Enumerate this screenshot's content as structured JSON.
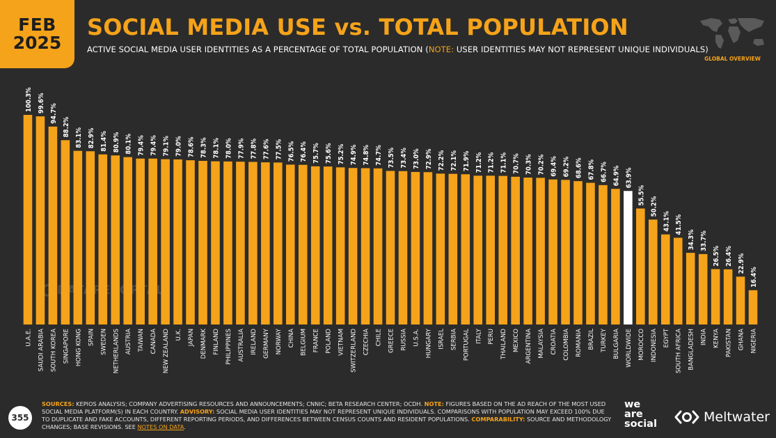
{
  "header": {
    "month": "FEB",
    "year": "2025",
    "title": "SOCIAL MEDIA USE vs. TOTAL POPULATION",
    "subtitle_main": "ACTIVE SOCIAL MEDIA USER IDENTITIES AS A PERCENTAGE OF TOTAL POPULATION (",
    "subtitle_note_label": "NOTE:",
    "subtitle_note_text": " USER IDENTITIES MAY NOT REPRESENT UNIQUE INDIVIDUALS)",
    "section": "GLOBAL OVERVIEW"
  },
  "watermark": "DATAREPORTAL",
  "footer": {
    "page_number": "355",
    "sources_label": "SOURCES:",
    "sources_text": " KEPIOS ANALYSIS; COMPANY ADVERTISING RESOURCES AND ANNOUNCEMENTS; CNNIC; BETA RESEARCH CENTER; OCDH. ",
    "note_label": "NOTE:",
    "note_text": " FIGURES BASED ON THE AD REACH OF THE MOST USED SOCIAL MEDIA PLATFORM(S) IN EACH COUNTRY. ",
    "advisory_label": "ADVISORY:",
    "advisory_text": " SOCIAL MEDIA USER IDENTITIES MAY NOT REPRESENT UNIQUE INDIVIDUALS. COMPARISONS WITH POPULATION MAY EXCEED 100% DUE TO DUPLICATE AND FAKE ACCOUNTS, DIFFERENT REPORTING PERIODS, AND DIFFERENCES BETWEEN CENSUS COUNTS AND RESIDENT POPULATIONS. ",
    "comparability_label": "COMPARABILITY:",
    "comparability_text": " SOURCE AND METHODOLOGY CHANGES; BASE REVISIONS. SEE ",
    "link_text": "NOTES ON DATA",
    "end_text": "."
  },
  "brands": {
    "wearesocial_line1": "we",
    "wearesocial_line2": "are",
    "wearesocial_line3": "social",
    "meltwater": "Meltwater"
  },
  "colors": {
    "background": "#2b2b2b",
    "accent": "#f5a31a",
    "highlight_bar": "#ffffff"
  },
  "chart_data": {
    "type": "bar",
    "highlight_category": "WORLDWIDE",
    "categories": [
      "U.A.E.",
      "SAUDI ARABIA",
      "SOUTH KOREA",
      "SINGAPORE",
      "HONG KONG",
      "SPAIN",
      "SWEDEN",
      "NETHERLANDS",
      "AUSTRIA",
      "TAIWAN",
      "CANADA",
      "NEW ZEALAND",
      "U.K.",
      "JAPAN",
      "DENMARK",
      "FINLAND",
      "PHILIPPINES",
      "AUSTRALIA",
      "IRELAND",
      "GERMANY",
      "NORWAY",
      "CHINA",
      "BELGIUM",
      "FRANCE",
      "POLAND",
      "VIETNAM",
      "SWITZERLAND",
      "CZECHIA",
      "CHILE",
      "GREECE",
      "RUSSIA",
      "U.S.A.",
      "HUNGARY",
      "ISRAEL",
      "SERBIA",
      "PORTUGAL",
      "ITALY",
      "PERU",
      "THAILAND",
      "MEXICO",
      "ARGENTINA",
      "MALAYSIA",
      "CROATIA",
      "COLOMBIA",
      "ROMANIA",
      "BRAZIL",
      "TURKEY",
      "BULGARIA",
      "WORLDWIDE",
      "MOROCCO",
      "INDONESIA",
      "EGYPT",
      "SOUTH AFRICA",
      "BANGLADESH",
      "INDIA",
      "KENYA",
      "PAKISTAN",
      "GHANA",
      "NIGERIA"
    ],
    "values": [
      100.3,
      99.6,
      94.7,
      88.2,
      83.1,
      82.9,
      81.4,
      80.9,
      80.1,
      79.4,
      79.4,
      79.1,
      79.0,
      78.6,
      78.3,
      78.1,
      78.0,
      77.9,
      77.8,
      77.6,
      77.5,
      76.5,
      76.4,
      75.7,
      75.6,
      75.2,
      74.9,
      74.8,
      74.7,
      73.5,
      73.4,
      73.0,
      72.9,
      72.2,
      72.1,
      71.9,
      71.2,
      71.2,
      71.1,
      70.7,
      70.3,
      70.2,
      69.4,
      69.2,
      68.6,
      67.8,
      66.7,
      64.9,
      63.9,
      55.5,
      50.2,
      43.1,
      41.5,
      34.3,
      33.7,
      26.5,
      26.4,
      22.9,
      16.4
    ],
    "labels": [
      "100.3%",
      "99.6%",
      "94.7%",
      "88.2%",
      "83.1%",
      "82.9%",
      "81.4%",
      "80.9%",
      "80.1%",
      "79.4%",
      "79.4%",
      "79.1%",
      "79.0%",
      "78.6%",
      "78.3%",
      "78.1%",
      "78.0%",
      "77.9%",
      "77.8%",
      "77.6%",
      "77.5%",
      "76.5%",
      "76.4%",
      "75.7%",
      "75.6%",
      "75.2%",
      "74.9%",
      "74.8%",
      "74.7%",
      "73.5%",
      "73.4%",
      "73.0%",
      "72.9%",
      "72.2%",
      "72.1%",
      "71.9%",
      "71.2%",
      "71.2%",
      "71.1%",
      "70.7%",
      "70.3%",
      "70.2%",
      "69.4%",
      "69.2%",
      "68.6%",
      "67.8%",
      "66.7%",
      "64.9%",
      "63.9%",
      "55.5%",
      "50.2%",
      "43.1%",
      "41.5%",
      "34.3%",
      "33.7%",
      "26.5%",
      "26.4%",
      "22.9%",
      "16.4%"
    ],
    "ylim": [
      0,
      100.3
    ],
    "grid": false,
    "legend": "none"
  }
}
